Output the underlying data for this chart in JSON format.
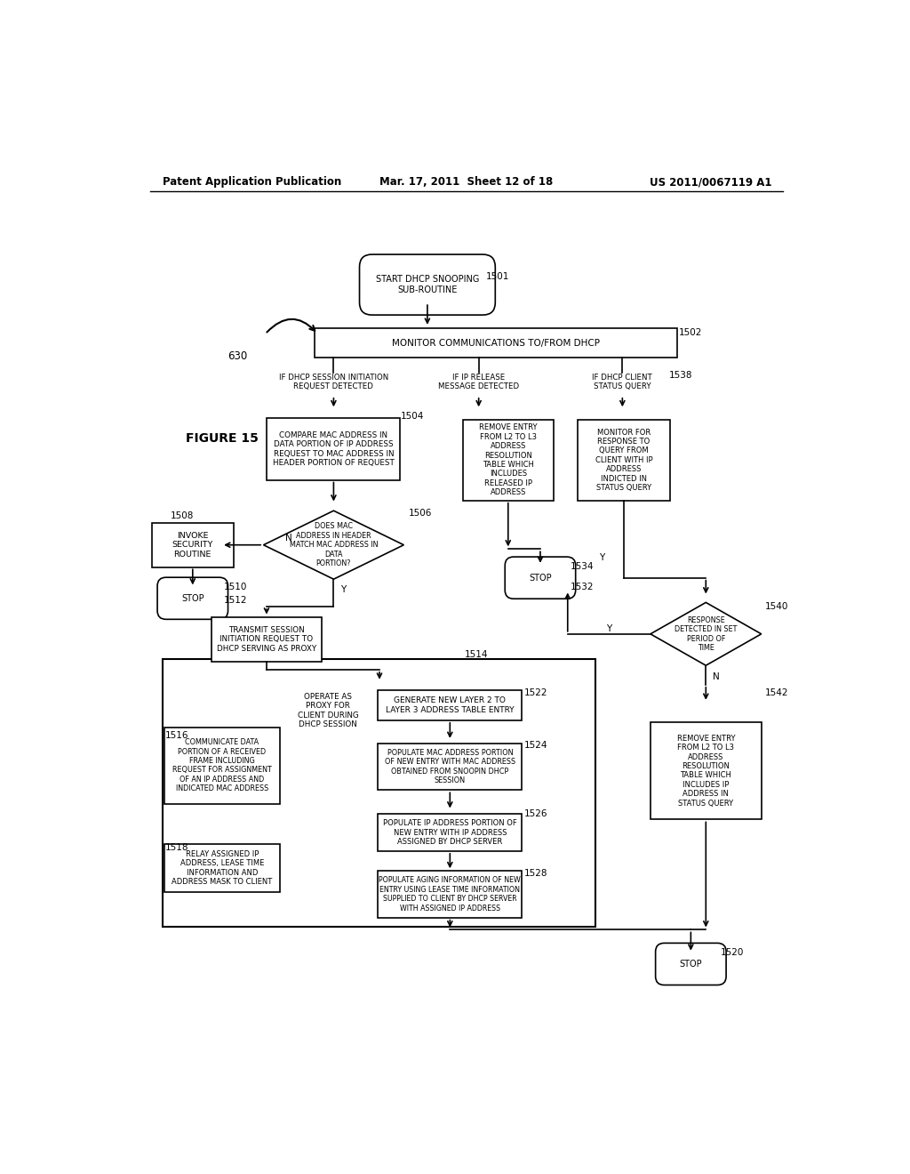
{
  "header_left": "Patent Application Publication",
  "header_mid": "Mar. 17, 2011  Sheet 12 of 18",
  "header_right": "US 2011/0067119 A1",
  "figure_label": "FIGURE 15",
  "bg": "#ffffff",
  "fg": "#000000",
  "start_text": "START DHCP SNOOPING\nSUB-ROUTINE",
  "monitor_text": "MONITOR COMMUNICATIONS TO/FROM DHCP",
  "branch1_text": "IF DHCP SESSION INITIATION\nREQUEST DETECTED",
  "branch2_text": "IF IP RELEASE\nMESSAGE DETECTED",
  "branch3_text": "IF DHCP CLIENT\nSTATUS QUERY",
  "b1504_text": "COMPARE MAC ADDRESS IN\nDATA PORTION OF IP ADDRESS\nREQUEST TO MAC ADDRESS IN\nHEADER PORTION OF REQUEST",
  "b_remove_mid_text": "REMOVE ENTRY\nFROM L2 TO L3\nADDRESS\nRESOLUTION\nTABLE WHICH\nINCLUDES\nRELEASED IP\nADDRESS",
  "b_monitor_resp_text": "MONITOR FOR\nRESPONSE TO\nQUERY FROM\nCLIENT WITH IP\nADDRESS\nINDICTED IN\nSTATUS QUERY",
  "d1506_text": "DOES MAC\nADDRESS IN HEADER\nMATCH MAC ADDRESS IN\nDATA\nPORTION?",
  "b1508_text": "INVOKE\nSECURITY\nROUTINE",
  "b1512_text": "TRANSMIT SESSION\nINITIATION REQUEST TO\nDHCP SERVING AS PROXY",
  "proxy_text": "OPERATE AS\nPROXY FOR\nCLIENT DURING\nDHCP SESSION",
  "b1516_text": "COMMUNICATE DATA\nPORTION OF A RECEIVED\nFRAME INCLUDING\nREQUEST FOR ASSIGNMENT\nOF AN IP ADDRESS AND\nINDICATED MAC ADDRESS",
  "b1518_text": "RELAY ASSIGNED IP\nADDRESS, LEASE TIME\nINFORMATION AND\nADDRESS MASK TO CLIENT",
  "b1522_text": "GENERATE NEW LAYER 2 TO\nLAYER 3 ADDRESS TABLE ENTRY",
  "b1524_text": "POPULATE MAC ADDRESS PORTION\nOF NEW ENTRY WITH MAC ADDRESS\nOBTAINED FROM SNOOPIN DHCP\nSESSION",
  "b1526_text": "POPULATE IP ADDRESS PORTION OF\nNEW ENTRY WITH IP ADDRESS\nASSIGNED BY DHCP SERVER",
  "b1528_text": "POPULATE AGING INFORMATION OF NEW\nENTRY USING LEASE TIME INFORMATION\nSUPPLIED TO CLIENT BY DHCP SERVER\nWITH ASSIGNED IP ADDRESS",
  "d1540_text": "RESPONSE\nDETECTED IN SET\nPERIOD OF\nTIME",
  "b1542_text": "REMOVE ENTRY\nFROM L2 TO L3\nADDRESS\nRESOLUTION\nTABLE WHICH\nINCLUDES IP\nADDRESS IN\nSTATUS QUERY",
  "stop_text": "STOP"
}
